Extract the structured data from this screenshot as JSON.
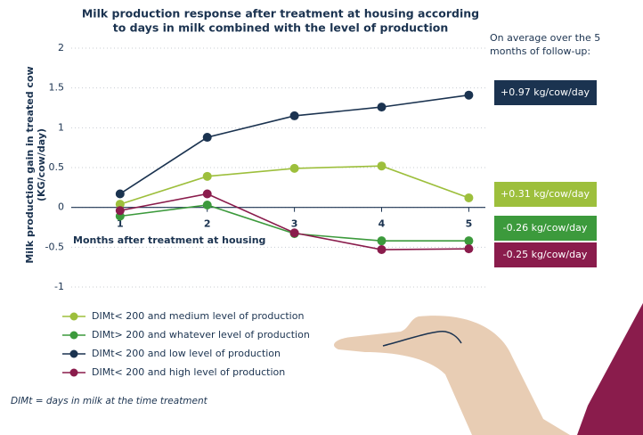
{
  "chart_data": {
    "type": "line",
    "title": [
      "Milk production response after treatment at housing according",
      "to days in milk combined with the level of production"
    ],
    "xlabel": "Months after treatment at housing",
    "ylabel": [
      "Milk production gain in treated cow",
      "(KG/cow/day)"
    ],
    "x": [
      1,
      2,
      3,
      4,
      5
    ],
    "xlim": [
      0.44,
      5.19
    ],
    "xticks": [
      1,
      2,
      3,
      4,
      5
    ],
    "ylim": [
      -1,
      2
    ],
    "yticks": [
      -1,
      -0.5,
      0,
      0.5,
      1,
      1.5,
      2
    ],
    "grid": true,
    "series": [
      {
        "name": "DIMt< 200 and medium level of production",
        "color": "#9dbf3c",
        "values": [
          0.04,
          0.39,
          0.49,
          0.52,
          0.12
        ]
      },
      {
        "name": "DIMt> 200 and whatever level of production",
        "color": "#3c9a3c",
        "values": [
          -0.11,
          0.03,
          -0.33,
          -0.42,
          -0.42
        ]
      },
      {
        "name": "DIMt< 200 and low level of production",
        "color": "#1b3350",
        "values": [
          0.17,
          0.88,
          1.15,
          1.26,
          1.41
        ]
      },
      {
        "name": "DIMt< 200 and high level of production",
        "color": "#8a1c4c",
        "values": [
          -0.04,
          0.17,
          -0.32,
          -0.53,
          -0.52
        ]
      }
    ],
    "note": [
      "On average over the 5",
      "months of follow-up:"
    ],
    "annotations": [
      {
        "text": "+0.97 kg/cow/day",
        "color": "#1b3350"
      },
      {
        "text": "+0.31 kg/cow/day",
        "color": "#9dbf3c"
      },
      {
        "text": "-0.26 kg/cow/day",
        "color": "#3c9a3c"
      },
      {
        "text": "-0.25 kg/cow/day",
        "color": "#8a1c4c"
      }
    ],
    "footnote": "DIMt = days in milk at the time treatment"
  }
}
